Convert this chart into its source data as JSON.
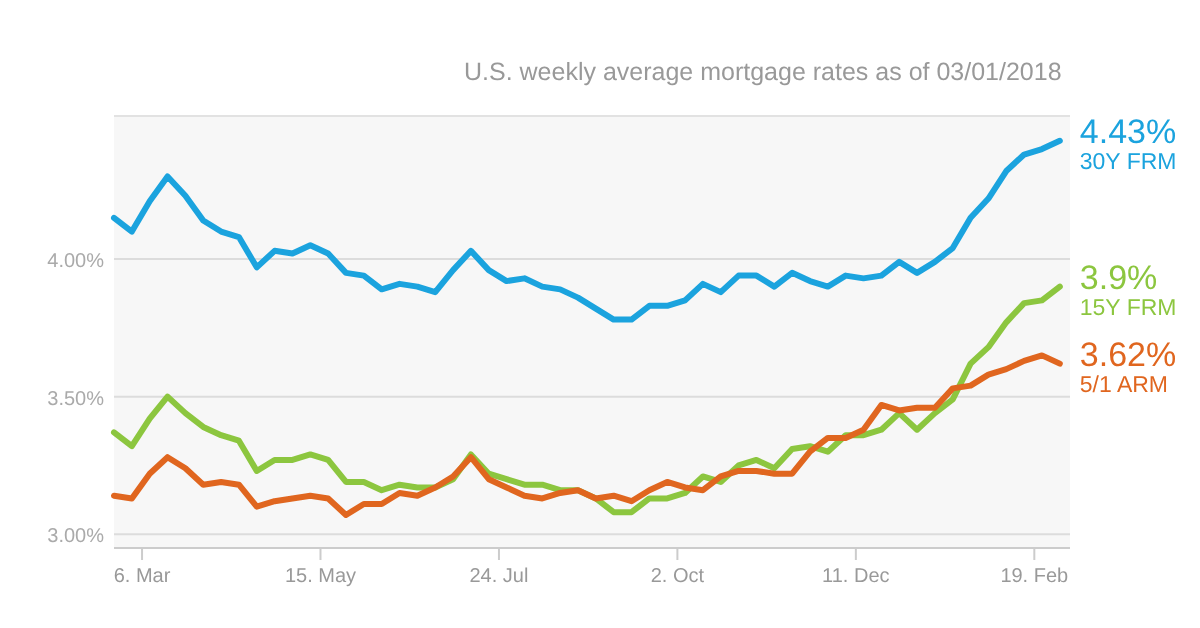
{
  "chart_data": {
    "type": "line",
    "subtitle": "U.S. weekly average mortgage rates as of 03/01/2018",
    "x": [
      "2017-02-23",
      "2017-03-02",
      "2017-03-09",
      "2017-03-16",
      "2017-03-23",
      "2017-03-30",
      "2017-04-06",
      "2017-04-13",
      "2017-04-20",
      "2017-04-27",
      "2017-05-04",
      "2017-05-11",
      "2017-05-18",
      "2017-05-25",
      "2017-06-01",
      "2017-06-08",
      "2017-06-15",
      "2017-06-22",
      "2017-06-29",
      "2017-07-06",
      "2017-07-13",
      "2017-07-20",
      "2017-07-27",
      "2017-08-03",
      "2017-08-10",
      "2017-08-17",
      "2017-08-24",
      "2017-08-31",
      "2017-09-07",
      "2017-09-14",
      "2017-09-21",
      "2017-09-28",
      "2017-10-05",
      "2017-10-12",
      "2017-10-19",
      "2017-10-26",
      "2017-11-02",
      "2017-11-09",
      "2017-11-16",
      "2017-11-23",
      "2017-11-30",
      "2017-12-07",
      "2017-12-14",
      "2017-12-21",
      "2017-12-28",
      "2018-01-04",
      "2018-01-11",
      "2018-01-18",
      "2018-01-25",
      "2018-02-01",
      "2018-02-08",
      "2018-02-15",
      "2018-02-22",
      "2018-03-01"
    ],
    "series": [
      {
        "name": "30Y FRM",
        "color": "#1ba3de",
        "values": [
          4.15,
          4.1,
          4.21,
          4.3,
          4.23,
          4.14,
          4.1,
          4.08,
          3.97,
          4.03,
          4.02,
          4.05,
          4.02,
          3.95,
          3.94,
          3.89,
          3.91,
          3.9,
          3.88,
          3.96,
          4.03,
          3.96,
          3.92,
          3.93,
          3.9,
          3.89,
          3.86,
          3.82,
          3.78,
          3.78,
          3.83,
          3.83,
          3.85,
          3.91,
          3.88,
          3.94,
          3.94,
          3.9,
          3.95,
          3.92,
          3.9,
          3.94,
          3.93,
          3.94,
          3.99,
          3.95,
          3.99,
          4.04,
          4.15,
          4.22,
          4.32,
          4.38,
          4.4,
          4.43
        ],
        "value_labels": [
          null,
          null,
          null,
          null,
          null,
          null,
          null,
          null,
          null,
          null,
          null,
          null,
          null,
          null,
          null,
          null,
          null,
          null,
          null,
          null,
          null,
          null,
          null,
          null,
          null,
          null,
          null,
          null,
          null,
          null,
          null,
          null,
          null,
          null,
          null,
          null,
          null,
          null,
          null,
          null,
          null,
          null,
          null,
          null,
          null,
          null,
          null,
          null,
          null,
          null,
          null,
          null,
          null,
          "4.43%"
        ]
      },
      {
        "name": "15Y FRM",
        "color": "#8cc63f",
        "values": [
          3.37,
          3.32,
          3.42,
          3.5,
          3.44,
          3.39,
          3.36,
          3.34,
          3.23,
          3.27,
          3.27,
          3.29,
          3.27,
          3.19,
          3.19,
          3.16,
          3.18,
          3.17,
          3.17,
          3.2,
          3.29,
          3.22,
          3.2,
          3.18,
          3.18,
          3.16,
          3.16,
          3.13,
          3.08,
          3.08,
          3.13,
          3.13,
          3.15,
          3.21,
          3.19,
          3.25,
          3.27,
          3.24,
          3.31,
          3.32,
          3.3,
          3.36,
          3.36,
          3.38,
          3.44,
          3.38,
          3.44,
          3.49,
          3.62,
          3.68,
          3.77,
          3.84,
          3.85,
          3.9
        ],
        "value_labels": [
          null,
          null,
          null,
          null,
          null,
          null,
          null,
          null,
          null,
          null,
          null,
          null,
          null,
          null,
          null,
          null,
          null,
          null,
          null,
          null,
          null,
          null,
          null,
          null,
          null,
          null,
          null,
          null,
          null,
          null,
          null,
          null,
          null,
          null,
          null,
          null,
          null,
          null,
          null,
          null,
          null,
          null,
          null,
          null,
          null,
          null,
          null,
          null,
          null,
          null,
          null,
          null,
          null,
          "3.9%"
        ]
      },
      {
        "name": "5/1 ARM",
        "color": "#e0661f",
        "values": [
          3.14,
          3.13,
          3.22,
          3.28,
          3.24,
          3.18,
          3.19,
          3.18,
          3.1,
          3.12,
          3.13,
          3.14,
          3.13,
          3.07,
          3.11,
          3.11,
          3.15,
          3.14,
          3.17,
          3.21,
          3.28,
          3.2,
          3.17,
          3.14,
          3.13,
          3.15,
          3.16,
          3.13,
          3.14,
          3.12,
          3.16,
          3.19,
          3.17,
          3.16,
          3.21,
          3.23,
          3.23,
          3.22,
          3.22,
          3.3,
          3.35,
          3.35,
          3.38,
          3.47,
          3.45,
          3.46,
          3.46,
          3.53,
          3.54,
          3.58,
          3.6,
          3.63,
          3.65,
          3.62
        ],
        "value_labels": [
          null,
          null,
          null,
          null,
          null,
          null,
          null,
          null,
          null,
          null,
          null,
          null,
          null,
          null,
          null,
          null,
          null,
          null,
          null,
          null,
          null,
          null,
          null,
          null,
          null,
          null,
          null,
          null,
          null,
          null,
          null,
          null,
          null,
          null,
          null,
          null,
          null,
          null,
          null,
          null,
          null,
          null,
          null,
          null,
          null,
          null,
          null,
          null,
          null,
          null,
          null,
          null,
          null,
          "3.62%"
        ]
      }
    ],
    "xlim": [
      "2017-02-23",
      "2018-03-05"
    ],
    "xticks": [
      {
        "value": "2017-03-06",
        "label": "6. Mar"
      },
      {
        "value": "2017-05-15",
        "label": "15. May"
      },
      {
        "value": "2017-07-24",
        "label": "24. Jul"
      },
      {
        "value": "2017-10-02",
        "label": "2. Oct"
      },
      {
        "value": "2017-12-11",
        "label": "11. Dec"
      },
      {
        "value": "2018-02-19",
        "label": "19. Feb"
      }
    ],
    "ylim": [
      2.95,
      4.52
    ],
    "yticks": [
      {
        "value": 3,
        "label": "3.00%"
      },
      {
        "value": 3.5,
        "label": "3.50%"
      },
      {
        "value": 4,
        "label": "4.00%"
      }
    ],
    "grid": "y",
    "marker": "none",
    "line_style": "solid"
  }
}
